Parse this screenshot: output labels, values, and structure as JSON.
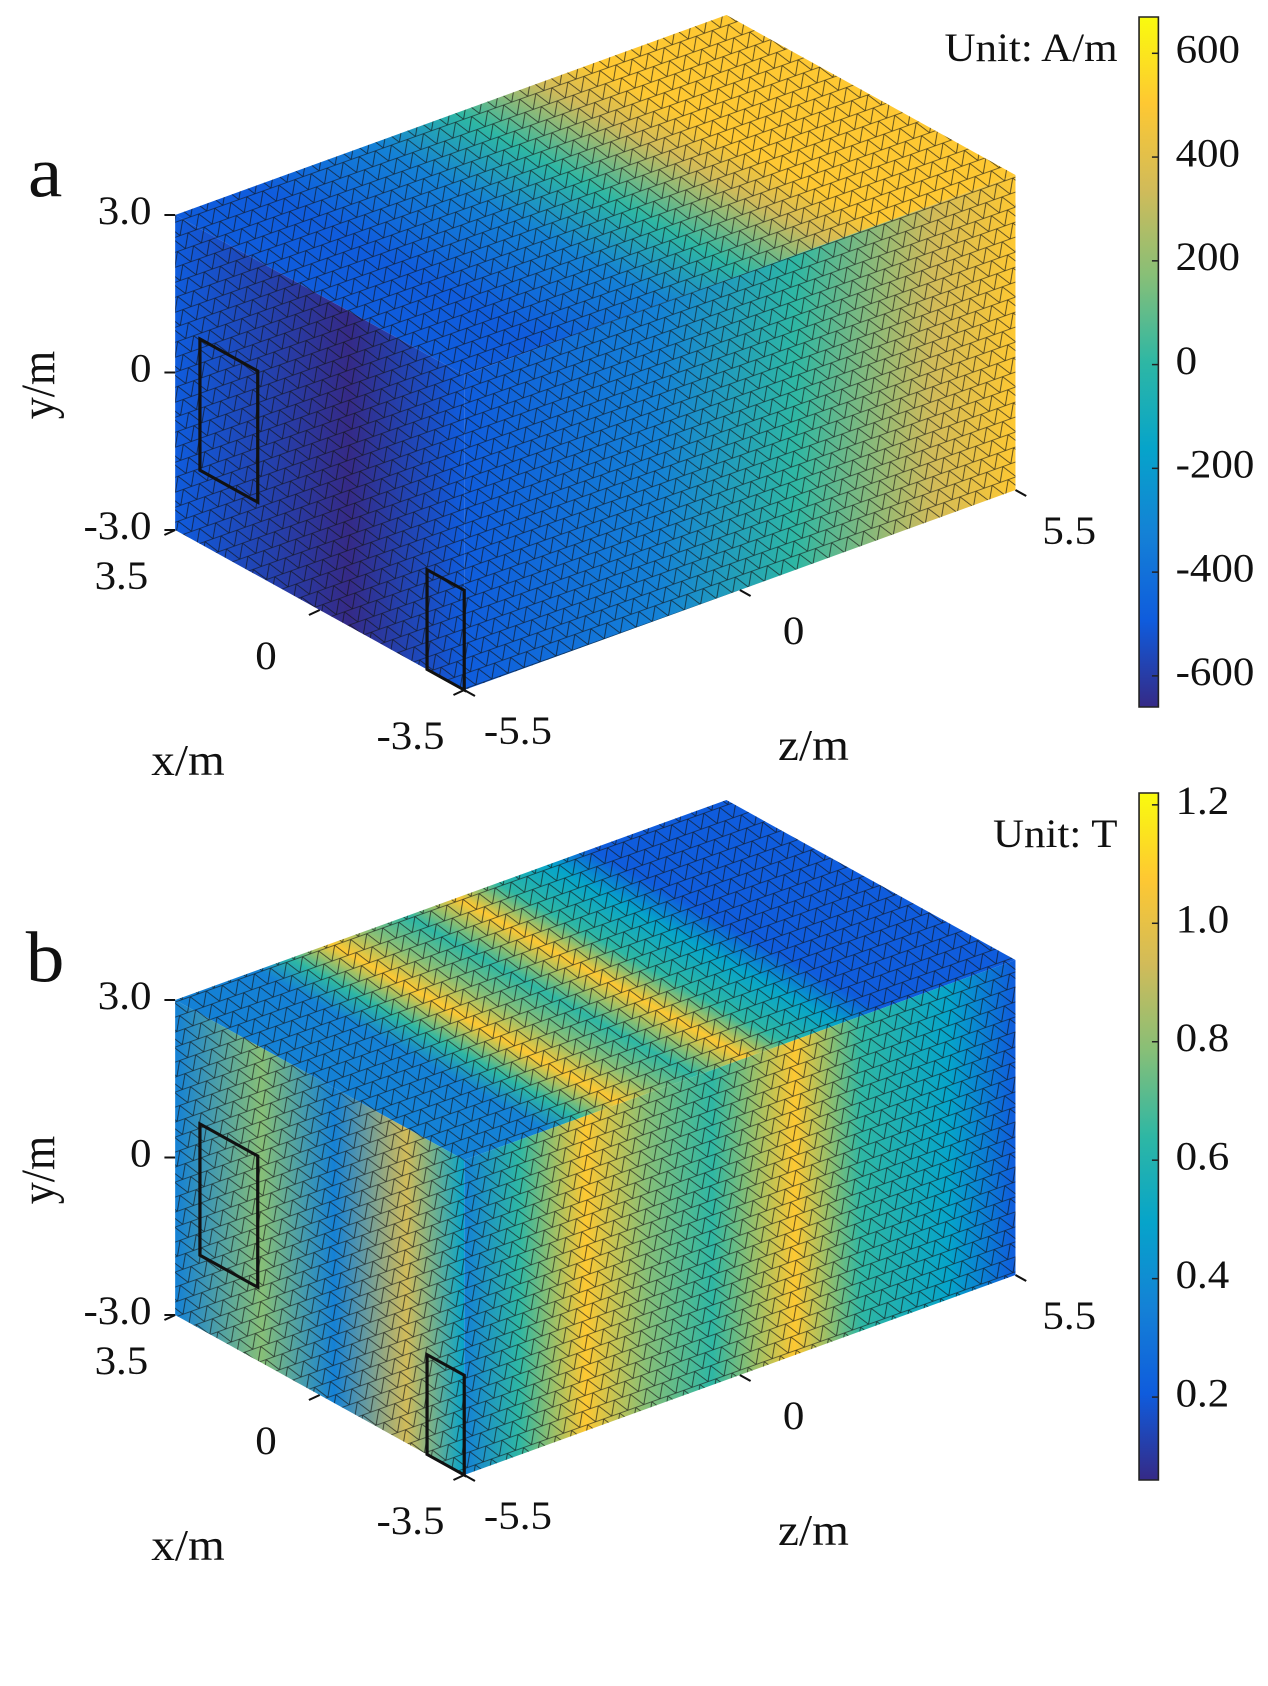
{
  "chart_data": [
    {
      "type": "mesh",
      "panel_label": "a",
      "unit_label": "Unit: A/m",
      "xlabel": "x/m",
      "ylabel": "y/m",
      "zlabel": "z/m",
      "xlim": [
        -3.5,
        3.5
      ],
      "xticks": [
        3.5,
        0,
        -3.5
      ],
      "ylim": [
        -3,
        3
      ],
      "yticks": [
        {
          "value": 3,
          "label": "3.0"
        },
        0,
        {
          "value": -3,
          "label": "-3.0"
        }
      ],
      "zlim": [
        -5.5,
        5.5
      ],
      "zticks": [
        -5.5,
        0,
        5.5
      ],
      "clim": [
        -660,
        670
      ],
      "cticks": [
        600,
        400,
        200,
        0,
        -200,
        -400,
        -600
      ],
      "colormap": [
        "#352a87",
        "#0f5cdd",
        "#1481d6",
        "#06a4ca",
        "#2eb7a4",
        "#87bf77",
        "#d1bb59",
        "#fec832",
        "#f9fb0e"
      ]
    },
    {
      "type": "mesh",
      "panel_label": "b",
      "unit_label": "Unit: T",
      "xlabel": "x/m",
      "ylabel": "y/m",
      "zlabel": "z/m",
      "xlim": [
        -3.5,
        3.5
      ],
      "xticks": [
        3.5,
        0,
        -3.5
      ],
      "ylim": [
        -3,
        3
      ],
      "yticks": [
        {
          "value": 3,
          "label": "3.0"
        },
        0,
        {
          "value": -3,
          "label": "-3.0"
        }
      ],
      "zlim": [
        -5.5,
        5.5
      ],
      "zticks": [
        -5.5,
        0,
        5.5
      ],
      "clim": [
        0.06,
        1.22
      ],
      "cticks": [
        1.2,
        {
          "value": 1,
          "label": "1.0"
        },
        0.8,
        0.6,
        0.4,
        0.2
      ],
      "colormap": [
        "#352a87",
        "#0f5cdd",
        "#1481d6",
        "#06a4ca",
        "#2eb7a4",
        "#87bf77",
        "#d1bb59",
        "#fec832",
        "#f9fb0e"
      ]
    }
  ]
}
